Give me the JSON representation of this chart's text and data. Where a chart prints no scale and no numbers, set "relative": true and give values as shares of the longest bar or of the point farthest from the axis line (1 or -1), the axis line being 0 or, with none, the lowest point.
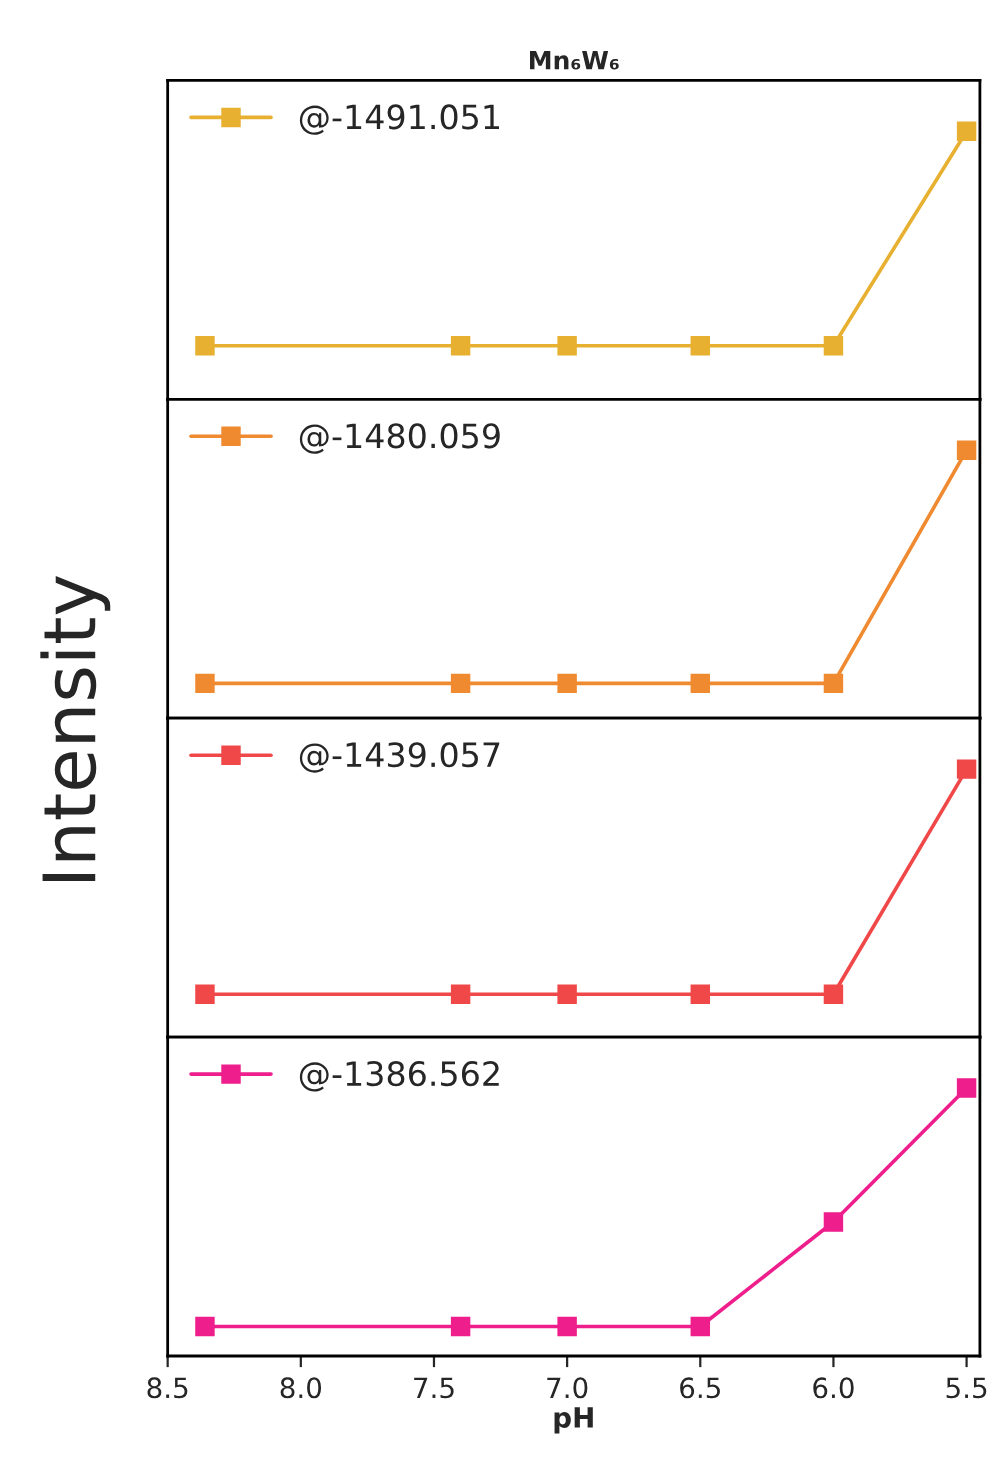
{
  "chart_data": [
    {
      "type": "line",
      "title": "Mn₆W₆",
      "ylabel": "Intensity",
      "x": [
        8.36,
        7.4,
        7.0,
        6.5,
        6.0,
        5.5
      ],
      "relative": true,
      "xlim": [
        8.5,
        5.45
      ],
      "tick_labels": false,
      "marker": "square",
      "legend": "top left",
      "series": [
        {
          "name": "@-1491.051",
          "color": "#e8b030",
          "values": [
            0.2,
            0.2,
            0.2,
            0.2,
            0.2,
            1
          ]
        }
      ]
    },
    {
      "type": "line",
      "x": [
        8.36,
        7.4,
        7.0,
        6.5,
        6.0,
        5.5
      ],
      "relative": true,
      "xlim": [
        8.5,
        5.45
      ],
      "tick_labels": false,
      "marker": "square",
      "legend": "top left",
      "series": [
        {
          "name": "@-1480.059",
          "color": "#f08a30",
          "values": [
            0.13,
            0.13,
            0.13,
            0.13,
            0.13,
            1
          ]
        }
      ]
    },
    {
      "type": "line",
      "x": [
        8.36,
        7.4,
        7.0,
        6.5,
        6.0,
        5.5
      ],
      "relative": true,
      "xlim": [
        8.5,
        5.45
      ],
      "tick_labels": false,
      "marker": "square",
      "legend": "top left",
      "series": [
        {
          "name": "@-1439.057",
          "color": "#f04848",
          "values": [
            0.16,
            0.16,
            0.16,
            0.16,
            0.16,
            1
          ]
        }
      ]
    },
    {
      "type": "line",
      "xlabel": "pH",
      "x": [
        8.36,
        7.4,
        7.0,
        6.5,
        6.0,
        5.5
      ],
      "relative": true,
      "xlim": [
        8.5,
        5.45
      ],
      "xticks": [
        8.5,
        {
          "value": 8,
          "label": "8.0"
        },
        7.5,
        {
          "value": 7,
          "label": "7.0"
        },
        6.5,
        {
          "value": 6,
          "label": "6.0"
        },
        5.5
      ],
      "tick_labels": "x",
      "marker": "square",
      "legend": "top left",
      "series": [
        {
          "name": "@-1386.562",
          "color": "#ee1e8c",
          "values": [
            0.11,
            0.11,
            0.11,
            0.11,
            0.5,
            1
          ]
        }
      ]
    }
  ]
}
